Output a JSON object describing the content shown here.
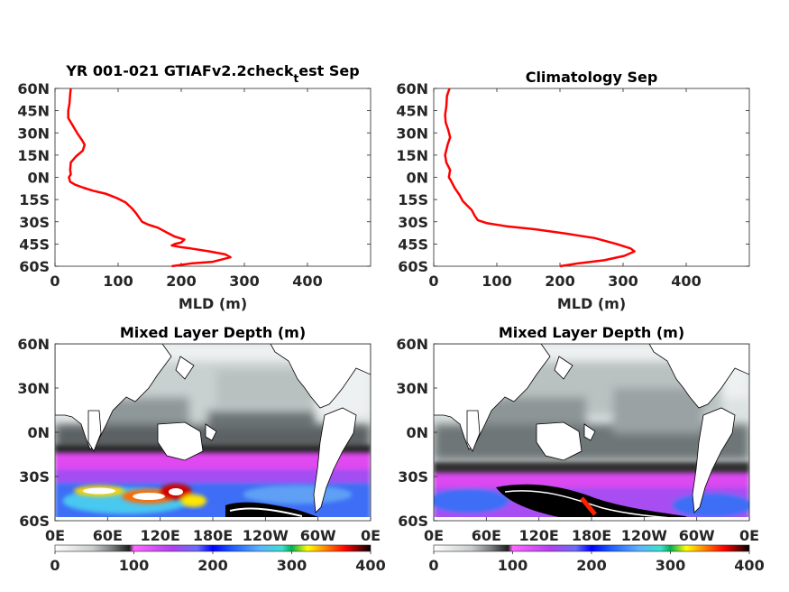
{
  "chart_data": [
    {
      "type": "line",
      "title_main": "YR 001-021 GTIAFv2.2check",
      "title_sub": "t",
      "title_tail": "est Sep",
      "xlabel": "MLD (m)",
      "ylabel": "",
      "xlim": [
        0,
        500
      ],
      "ylim": [
        -60,
        60
      ],
      "x_ticks": [
        "0",
        "100",
        "200",
        "300",
        "400"
      ],
      "y_ticks": [
        "60N",
        "45N",
        "30N",
        "15N",
        "0N",
        "15S",
        "30S",
        "45S",
        "60S"
      ],
      "series": [
        {
          "color": "#ff0000",
          "points": [
            [
              25,
              60
            ],
            [
              24,
              56
            ],
            [
              23,
              50
            ],
            [
              21,
              45
            ],
            [
              21,
              40
            ],
            [
              28,
              35
            ],
            [
              35,
              30
            ],
            [
              43,
              25
            ],
            [
              47,
              22
            ],
            [
              44,
              18
            ],
            [
              33,
              14
            ],
            [
              25,
              10
            ],
            [
              24,
              5
            ],
            [
              25,
              2
            ],
            [
              22,
              0
            ],
            [
              24,
              -3
            ],
            [
              32,
              -5
            ],
            [
              45,
              -7
            ],
            [
              60,
              -9
            ],
            [
              80,
              -11
            ],
            [
              98,
              -14
            ],
            [
              112,
              -17
            ],
            [
              122,
              -21
            ],
            [
              128,
              -24
            ],
            [
              133,
              -27
            ],
            [
              138,
              -30
            ],
            [
              148,
              -32
            ],
            [
              163,
              -34
            ],
            [
              176,
              -37
            ],
            [
              190,
              -40
            ],
            [
              205,
              -42
            ],
            [
              200,
              -44
            ],
            [
              190,
              -45
            ],
            [
              185,
              -46
            ],
            [
              198,
              -47
            ],
            [
              215,
              -48
            ],
            [
              245,
              -50
            ],
            [
              270,
              -52
            ],
            [
              278,
              -54
            ],
            [
              250,
              -57
            ],
            [
              218,
              -58
            ],
            [
              185,
              -60
            ]
          ]
        }
      ]
    },
    {
      "type": "line",
      "title_main": "Climatology Sep",
      "title_sub": "",
      "title_tail": "",
      "xlabel": "MLD (m)",
      "ylabel": "",
      "xlim": [
        0,
        500
      ],
      "ylim": [
        -60,
        60
      ],
      "x_ticks": [
        "0",
        "100",
        "200",
        "300",
        "400"
      ],
      "y_ticks": [
        "60N",
        "45N",
        "30N",
        "15N",
        "0N",
        "15S",
        "30S",
        "45S",
        "60S"
      ],
      "series": [
        {
          "color": "#ff0000",
          "points": [
            [
              25,
              60
            ],
            [
              21,
              55
            ],
            [
              20,
              48
            ],
            [
              18,
              42
            ],
            [
              19,
              37
            ],
            [
              23,
              32
            ],
            [
              26,
              27
            ],
            [
              22,
              22
            ],
            [
              18,
              15
            ],
            [
              20,
              10
            ],
            [
              26,
              5
            ],
            [
              24,
              0
            ],
            [
              27,
              -2
            ],
            [
              33,
              -7
            ],
            [
              41,
              -12
            ],
            [
              46,
              -16
            ],
            [
              53,
              -19
            ],
            [
              60,
              -22
            ],
            [
              65,
              -26
            ],
            [
              70,
              -29
            ],
            [
              85,
              -31
            ],
            [
              115,
              -33
            ],
            [
              160,
              -35
            ],
            [
              210,
              -38
            ],
            [
              255,
              -41
            ],
            [
              290,
              -45
            ],
            [
              312,
              -48
            ],
            [
              318,
              -50
            ],
            [
              302,
              -53
            ],
            [
              270,
              -56
            ],
            [
              230,
              -58
            ],
            [
              200,
              -60
            ]
          ]
        }
      ]
    },
    {
      "type": "heatmap",
      "title": "Mixed Layer Depth (m)",
      "x_ticks": [
        "0E",
        "60E",
        "120E",
        "180E",
        "120W",
        "60W",
        "0E"
      ],
      "y_ticks": [
        "60N",
        "30N",
        "0N",
        "30S",
        "60S"
      ],
      "colorbar_ticks": [
        "0",
        "100",
        "200",
        "300",
        "400"
      ],
      "colorbar_range": [
        0,
        400
      ]
    },
    {
      "type": "heatmap",
      "title": "Mixed Layer Depth (m)",
      "x_ticks": [
        "0E",
        "60E",
        "120E",
        "180E",
        "120W",
        "60W",
        "0E"
      ],
      "y_ticks": [
        "60N",
        "30N",
        "0N",
        "30S",
        "60S"
      ],
      "colorbar_ticks": [
        "0",
        "100",
        "200",
        "300",
        "400"
      ],
      "colorbar_range": [
        0,
        400
      ]
    }
  ],
  "colors": {
    "line": "#ff0000",
    "ocean_light": "#e3e8e8",
    "ocean_mid": "#9aa3a3",
    "ocean_dark": "#2b2b2b",
    "magenta": "#e040f0",
    "violet": "#b44cf0",
    "blue": "#3c6cf0",
    "cyan": "#3cc8f0",
    "black": "#000000"
  }
}
